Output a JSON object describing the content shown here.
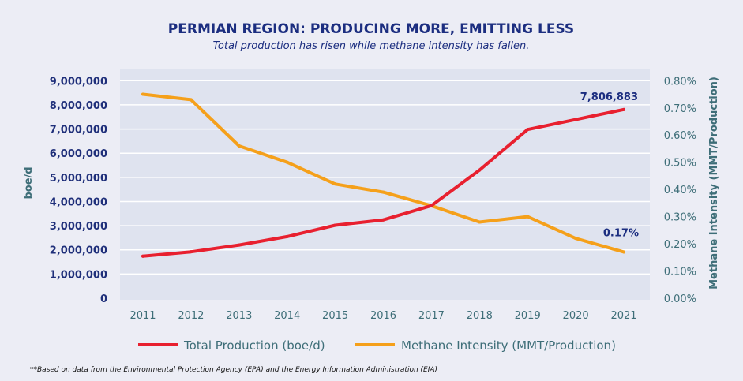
{
  "chart_data": {
    "type": "line",
    "title": "PERMIAN REGION: PRODUCING MORE, EMITTING LESS",
    "subtitle": "Total production has risen while methane intensity has fallen.",
    "x": [
      "2011",
      "2012",
      "2013",
      "2014",
      "2015",
      "2016",
      "2017",
      "2018",
      "2019",
      "2020",
      "2021"
    ],
    "series": [
      {
        "name": "Total Production (boe/d)",
        "axis": "left",
        "color": "#E8202F",
        "values": [
          1740000,
          1920000,
          2200000,
          2550000,
          3020000,
          3240000,
          3830000,
          5300000,
          6980000,
          7390000,
          7806883
        ]
      },
      {
        "name": "Methane Intensity (MMT/Production)",
        "axis": "right",
        "color": "#F5A01A",
        "values": [
          0.75,
          0.73,
          0.56,
          0.5,
          0.42,
          0.39,
          0.34,
          0.28,
          0.3,
          0.22,
          0.17
        ]
      }
    ],
    "ylabel": "boe/d",
    "ylim": [
      0,
      9000000
    ],
    "yticks": [
      "0",
      "1,000,000",
      "2,000,000",
      "3,000,000",
      "4,000,000",
      "5,000,000",
      "6,000,000",
      "7,000,000",
      "8,000,000",
      "9,000,000"
    ],
    "y2label": "Methane Intensity (MMT/Production)",
    "y2lim": [
      0,
      0.8
    ],
    "y2ticks": [
      "0.00%",
      "0.10%",
      "0.20%",
      "0.30%",
      "0.40%",
      "0.50%",
      "0.60%",
      "0.70%",
      "0.80%"
    ],
    "annotations": [
      {
        "series": 0,
        "index": 10,
        "text": "7,806,883"
      },
      {
        "series": 1,
        "index": 10,
        "text": "0.17%"
      }
    ],
    "grid": true,
    "legend_position": "bottom",
    "footnote": "**Based on data from the Environmental Protection Agency (EPA) and the Energy Information Administration (EIA)"
  },
  "colors": {
    "background": "#ECEDF5",
    "plot_background": "#DFE3EF",
    "gridline": "#FFFFFF",
    "title": "#1C2E80",
    "left_axis_text": "#1F2F7A",
    "right_axis_text": "#3E6E78"
  }
}
